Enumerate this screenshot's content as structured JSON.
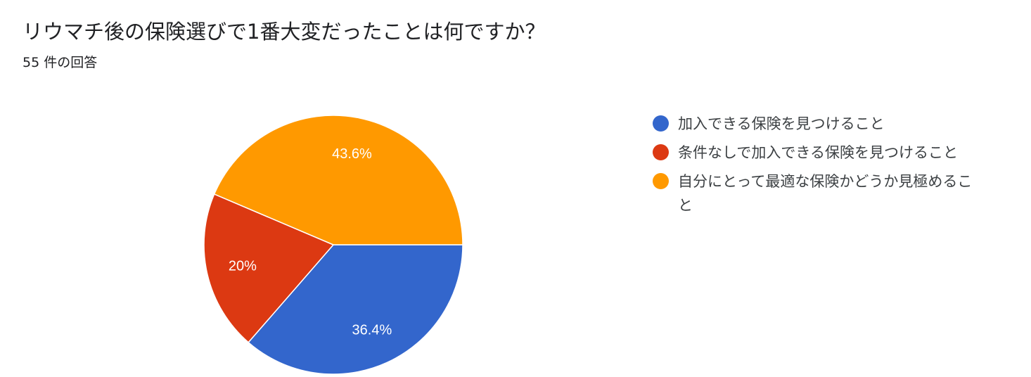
{
  "title": "リウマチ後の保険選びで1番大変だったことは何ですか？",
  "subtitle": "55 件の回答",
  "chart_data": {
    "type": "pie",
    "title": "リウマチ後の保険選びで1番大変だったことは何ですか？",
    "total_responses": 55,
    "legend_position": "right",
    "slices": [
      {
        "label": "加入できる保険を見つけること",
        "value": 36.4,
        "display": "36.4%",
        "color": "#3366cc"
      },
      {
        "label": "条件なしで加入できる保険を見つけること",
        "value": 20,
        "display": "20%",
        "color": "#dc3912"
      },
      {
        "label": "自分にとって最適な保険かどうか見極めること",
        "value": 43.6,
        "display": "43.6%",
        "color": "#ff9900"
      }
    ]
  }
}
